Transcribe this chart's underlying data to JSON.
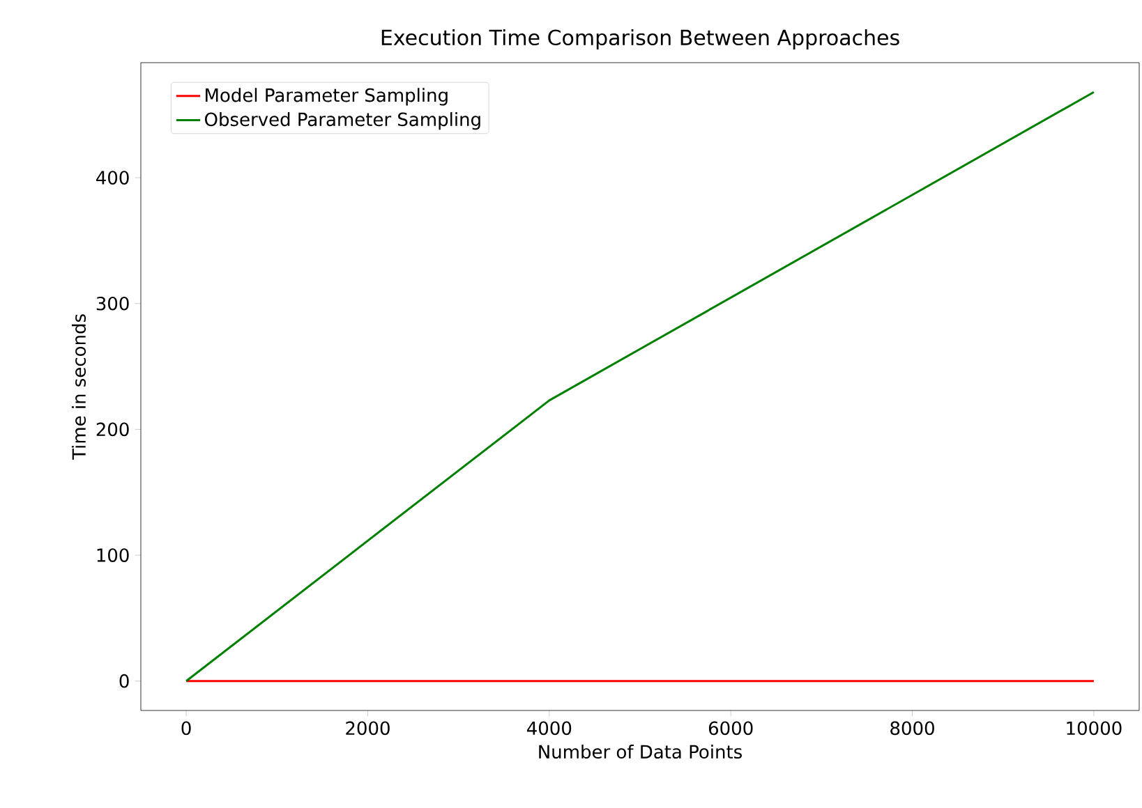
{
  "chart_data": {
    "type": "line",
    "title": "Execution Time Comparison Between Approaches",
    "xlabel": "Number of Data Points",
    "ylabel": "Time in seconds",
    "series": [
      {
        "name": "Model Parameter Sampling",
        "color": "#ff0000",
        "x": [
          0,
          4000,
          10000
        ],
        "values": [
          0,
          0,
          0
        ]
      },
      {
        "name": "Observed Parameter Sampling",
        "color": "#008000",
        "x": [
          0,
          4000,
          10000
        ],
        "values": [
          0,
          223,
          468
        ]
      }
    ],
    "xlim": [
      -500,
      10500
    ],
    "ylim": [
      -23.4,
      491.4
    ],
    "xticks": [
      0,
      2000,
      4000,
      6000,
      8000,
      10000
    ],
    "yticks": [
      0,
      100,
      200,
      300,
      400
    ],
    "legend": "top left",
    "grid": false,
    "marker": "none",
    "line_style": "solid"
  }
}
